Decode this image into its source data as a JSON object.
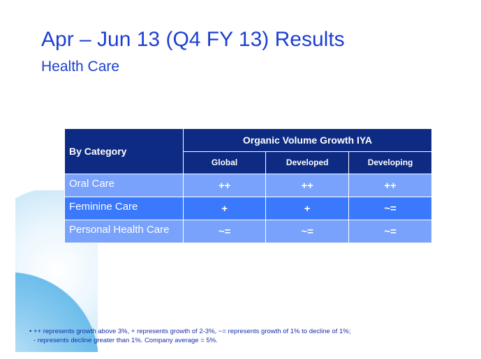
{
  "slide": {
    "title": "Apr – Jun 13 (Q4 FY 13) Results",
    "subtitle": "Health Care"
  },
  "table": {
    "category_header": "By Category",
    "group_header": "Organic Volume Growth IYA",
    "columns": [
      "Global",
      "Developed",
      "Developing"
    ],
    "rows": [
      {
        "category": "Oral Care",
        "values": [
          "++",
          "++",
          "++"
        ]
      },
      {
        "category": "Feminine Care",
        "values": [
          "+",
          "+",
          "~="
        ]
      },
      {
        "category": "Personal Health Care",
        "values": [
          "~=",
          "~=",
          "~="
        ]
      }
    ]
  },
  "footnote": {
    "bullet": "•",
    "line1": "++ represents growth above 3%, + represents growth of 2-3%, ~= represents growth of 1% to decline of 1%;",
    "line2": "- represents decline greater than 1%.  Company average = 5%."
  },
  "colors": {
    "title": "#1c3fd0",
    "header": "#0d2b82",
    "row_light": "#78a2fb",
    "row_mid": "#3a78fc"
  }
}
